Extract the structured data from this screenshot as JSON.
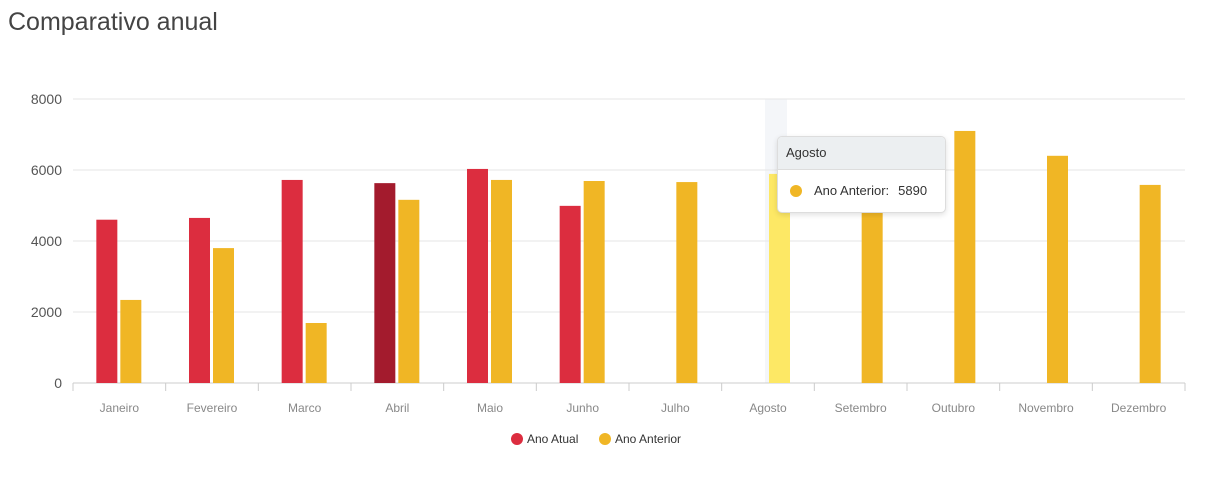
{
  "title": "Comparativo anual",
  "chart_data": {
    "type": "bar",
    "title": "Comparativo anual",
    "categories": [
      "Janeiro",
      "Fevereiro",
      "Marco",
      "Abril",
      "Maio",
      "Junho",
      "Julho",
      "Agosto",
      "Setembro",
      "Outubro",
      "Novembro",
      "Dezembro"
    ],
    "series": [
      {
        "name": "Ano Atual",
        "color": "#dc2d3f",
        "values": [
          4600,
          4650,
          5720,
          5630,
          6030,
          4990,
          null,
          null,
          null,
          null,
          null,
          null
        ]
      },
      {
        "name": "Ano Anterior",
        "color": "#f0b625",
        "values": [
          2340,
          3800,
          1690,
          5160,
          5720,
          5690,
          5660,
          5890,
          5300,
          7100,
          6400,
          5580
        ]
      }
    ],
    "ylim": [
      0,
      8000
    ],
    "yticks": [
      "0",
      "2000",
      "4000",
      "6000",
      "8000"
    ],
    "grid": true,
    "legend": "bottom"
  },
  "tooltip": {
    "title": "Agosto",
    "label": "Ano Anterior:",
    "value": "5890"
  }
}
